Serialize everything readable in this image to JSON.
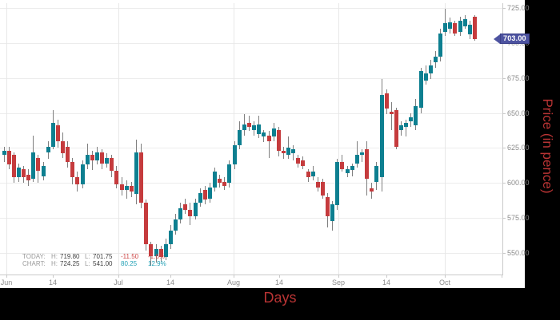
{
  "colors": {
    "background": "#000000",
    "panel": "#ffffff",
    "up_candle": "#0d7f90",
    "down_candle": "#c53b3d",
    "wick": "#7f7f7f",
    "grid": "#ececec",
    "axis": "#c9c9c9",
    "tick_text": "#8c8c8c",
    "axis_title_red": "#b93434",
    "price_tag_bg": "#4d53a0",
    "legend_negative": "#cc4545",
    "legend_positive": "#21a0b5"
  },
  "price_tag": {
    "label": "703.00"
  },
  "legend": {
    "today": {
      "name": "TODAY:",
      "h_key": "H:",
      "h": "719.80",
      "l_key": "L:",
      "l": "701.75",
      "change": "-11.50",
      "pct": "-1.6%",
      "direction": "neg"
    },
    "chart": {
      "name": "CHART:",
      "h_key": "H:",
      "h": "724.25",
      "l_key": "L:",
      "l": "541.00",
      "change": "80.25",
      "pct": "12.9%",
      "direction": "pos"
    }
  },
  "chart_data": {
    "type": "candlestick",
    "title": "",
    "xlabel": "Days",
    "ylabel": "Price (in pence)",
    "unit": "pence",
    "current_price": 703.0,
    "today_high": 719.8,
    "today_low": 701.75,
    "chart_high": 724.25,
    "chart_low": 541.0,
    "ylim": [
      535,
      730
    ],
    "grid": true,
    "y_ticks": [
      {
        "value": 725,
        "label": "725.00"
      },
      {
        "value": 700,
        "label": "700.00"
      },
      {
        "value": 675,
        "label": "675.00"
      },
      {
        "value": 650,
        "label": "650.00"
      },
      {
        "value": 625,
        "label": "625.00"
      },
      {
        "value": 600,
        "label": "600.00"
      },
      {
        "value": 575,
        "label": "575.00"
      },
      {
        "value": 550,
        "label": "550.00"
      }
    ],
    "x_ticks": [
      {
        "x": 8,
        "label": "Jun",
        "gridline": true
      },
      {
        "x": 66,
        "label": "14",
        "gridline": false
      },
      {
        "x": 148,
        "label": "Jul",
        "gridline": true
      },
      {
        "x": 213,
        "label": "14",
        "gridline": false
      },
      {
        "x": 292,
        "label": "Aug",
        "gridline": true
      },
      {
        "x": 349,
        "label": "14",
        "gridline": false
      },
      {
        "x": 423,
        "label": "Sep",
        "gridline": true
      },
      {
        "x": 483,
        "label": "14",
        "gridline": false
      },
      {
        "x": 556,
        "label": "Oct",
        "gridline": true
      },
      {
        "x": 627,
        "label": "",
        "gridline": false
      }
    ],
    "candles_ohlc": [
      [
        620,
        626,
        615,
        623
      ],
      [
        623,
        626,
        610,
        613
      ],
      [
        620,
        622,
        600,
        604
      ],
      [
        604,
        614,
        601,
        611
      ],
      [
        610,
        612,
        600,
        604
      ],
      [
        606,
        610,
        598,
        602
      ],
      [
        603,
        634,
        601,
        622
      ],
      [
        618,
        620,
        600,
        609
      ],
      [
        605,
        615,
        602,
        612
      ],
      [
        622,
        630,
        617,
        626
      ],
      [
        626,
        652,
        624,
        643
      ],
      [
        641,
        645,
        625,
        630
      ],
      [
        630,
        636,
        618,
        621
      ],
      [
        626,
        630,
        611,
        615
      ],
      [
        615,
        618,
        599,
        604
      ],
      [
        604,
        608,
        594,
        599
      ],
      [
        599,
        616,
        596,
        613
      ],
      [
        613,
        628,
        610,
        620
      ],
      [
        620,
        623,
        609,
        616
      ],
      [
        616,
        626,
        613,
        622
      ],
      [
        622,
        624,
        610,
        614
      ],
      [
        614,
        621,
        611,
        618
      ],
      [
        618,
        620,
        604,
        609
      ],
      [
        609,
        612,
        596,
        599
      ],
      [
        599,
        604,
        591,
        595
      ],
      [
        595,
        602,
        589,
        598
      ],
      [
        598,
        601,
        590,
        594
      ],
      [
        592,
        631,
        585,
        622
      ],
      [
        622,
        628,
        582,
        586
      ],
      [
        586,
        588,
        552,
        556
      ],
      [
        556,
        558,
        541,
        548
      ],
      [
        548,
        556,
        543,
        553
      ],
      [
        553,
        555,
        544,
        547
      ],
      [
        547,
        560,
        545,
        556
      ],
      [
        556,
        570,
        553,
        566
      ],
      [
        566,
        578,
        563,
        574
      ],
      [
        574,
        586,
        571,
        582
      ],
      [
        585,
        589,
        578,
        581
      ],
      [
        581,
        586,
        570,
        576
      ],
      [
        576,
        589,
        574,
        586
      ],
      [
        586,
        596,
        583,
        593
      ],
      [
        595,
        598,
        585,
        588
      ],
      [
        589,
        600,
        586,
        597
      ],
      [
        597,
        611,
        594,
        608
      ],
      [
        603,
        606,
        597,
        600
      ],
      [
        601,
        604,
        595,
        598
      ],
      [
        600,
        616,
        597,
        613
      ],
      [
        613,
        630,
        610,
        627
      ],
      [
        627,
        644,
        624,
        638
      ],
      [
        638,
        649,
        634,
        642
      ],
      [
        643,
        648,
        637,
        640
      ],
      [
        638,
        644,
        634,
        641
      ],
      [
        635,
        648,
        632,
        642
      ],
      [
        633,
        638,
        629,
        636
      ],
      [
        634,
        637,
        618,
        630
      ],
      [
        633,
        643,
        630,
        639
      ],
      [
        638,
        640,
        619,
        623
      ],
      [
        623,
        626,
        617,
        621
      ],
      [
        620,
        633,
        617,
        625
      ],
      [
        621,
        627,
        616,
        624
      ],
      [
        618,
        620,
        611,
        614
      ],
      [
        616,
        619,
        610,
        612
      ],
      [
        608,
        610,
        601,
        604
      ],
      [
        605,
        612,
        602,
        608
      ],
      [
        601,
        604,
        594,
        597
      ],
      [
        601,
        603,
        589,
        591
      ],
      [
        590,
        593,
        568,
        576
      ],
      [
        573,
        587,
        566,
        585
      ],
      [
        584,
        617,
        581,
        615
      ],
      [
        615,
        620,
        608,
        610
      ],
      [
        607,
        612,
        604,
        610
      ],
      [
        609,
        614,
        605,
        612
      ],
      [
        614,
        630,
        611,
        620
      ],
      [
        620,
        624,
        615,
        622
      ],
      [
        624,
        630,
        591,
        603
      ],
      [
        596,
        600,
        589,
        594
      ],
      [
        601,
        615,
        595,
        612
      ],
      [
        604,
        674,
        594,
        663
      ],
      [
        664,
        667,
        649,
        653
      ],
      [
        651,
        658,
        638,
        649
      ],
      [
        652,
        654,
        624,
        626
      ],
      [
        638,
        644,
        634,
        641
      ],
      [
        640,
        645,
        633,
        643
      ],
      [
        644,
        650,
        640,
        647
      ],
      [
        641,
        660,
        638,
        655
      ],
      [
        654,
        682,
        650,
        680
      ],
      [
        673,
        684,
        670,
        678
      ],
      [
        678,
        688,
        674,
        684
      ],
      [
        686,
        694,
        682,
        690
      ],
      [
        690,
        710,
        687,
        707
      ],
      [
        708,
        724.25,
        705,
        714
      ],
      [
        710,
        718,
        707,
        715
      ],
      [
        714,
        716,
        705,
        707
      ],
      [
        708,
        719,
        705,
        716
      ],
      [
        712,
        720,
        710,
        717
      ],
      [
        706,
        716,
        703,
        713
      ],
      [
        719,
        719.8,
        701.75,
        703
      ]
    ]
  }
}
